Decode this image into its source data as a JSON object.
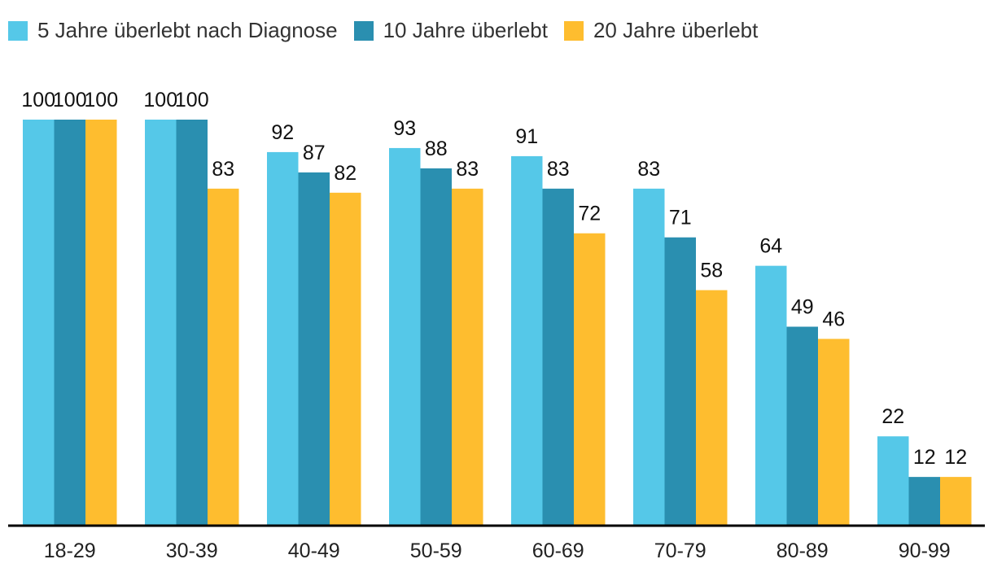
{
  "chart_data": {
    "type": "bar",
    "title": "",
    "xlabel": "",
    "ylabel": "",
    "ylim": [
      0,
      100
    ],
    "grid": false,
    "legend_position": "top-left",
    "categories": [
      "18-29",
      "30-39",
      "40-49",
      "50-59",
      "60-69",
      "70-79",
      "80-89",
      "90-99"
    ],
    "series": [
      {
        "name": "5 Jahre überlebt nach Diagnose",
        "color": "#55C8E8",
        "values": [
          100,
          100,
          92,
          93,
          91,
          83,
          64,
          22
        ]
      },
      {
        "name": "10 Jahre überlebt",
        "color": "#2A8FB0",
        "values": [
          100,
          100,
          87,
          88,
          83,
          71,
          49,
          12
        ]
      },
      {
        "name": "20 Jahre überlebt",
        "color": "#FEBD2F",
        "values": [
          100,
          83,
          82,
          83,
          72,
          58,
          46,
          12
        ]
      }
    ]
  }
}
